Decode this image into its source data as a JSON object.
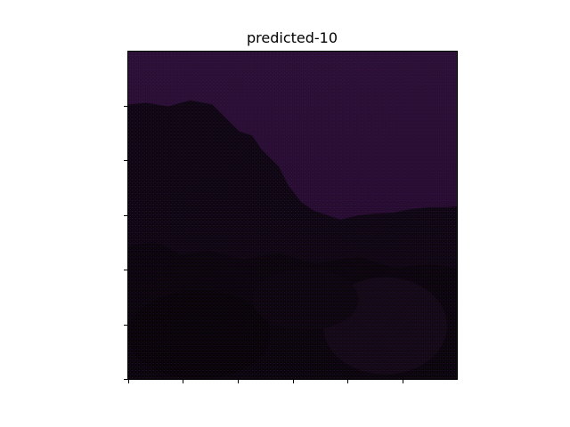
{
  "figure": {
    "title": "predicted-10"
  },
  "image": {
    "description_colors": {
      "sky": "#2a0f35",
      "dark": "#0d0610",
      "darkest": "#050205",
      "texture_a": "#4b1f5a",
      "texture_b": "#1c2a10"
    }
  }
}
